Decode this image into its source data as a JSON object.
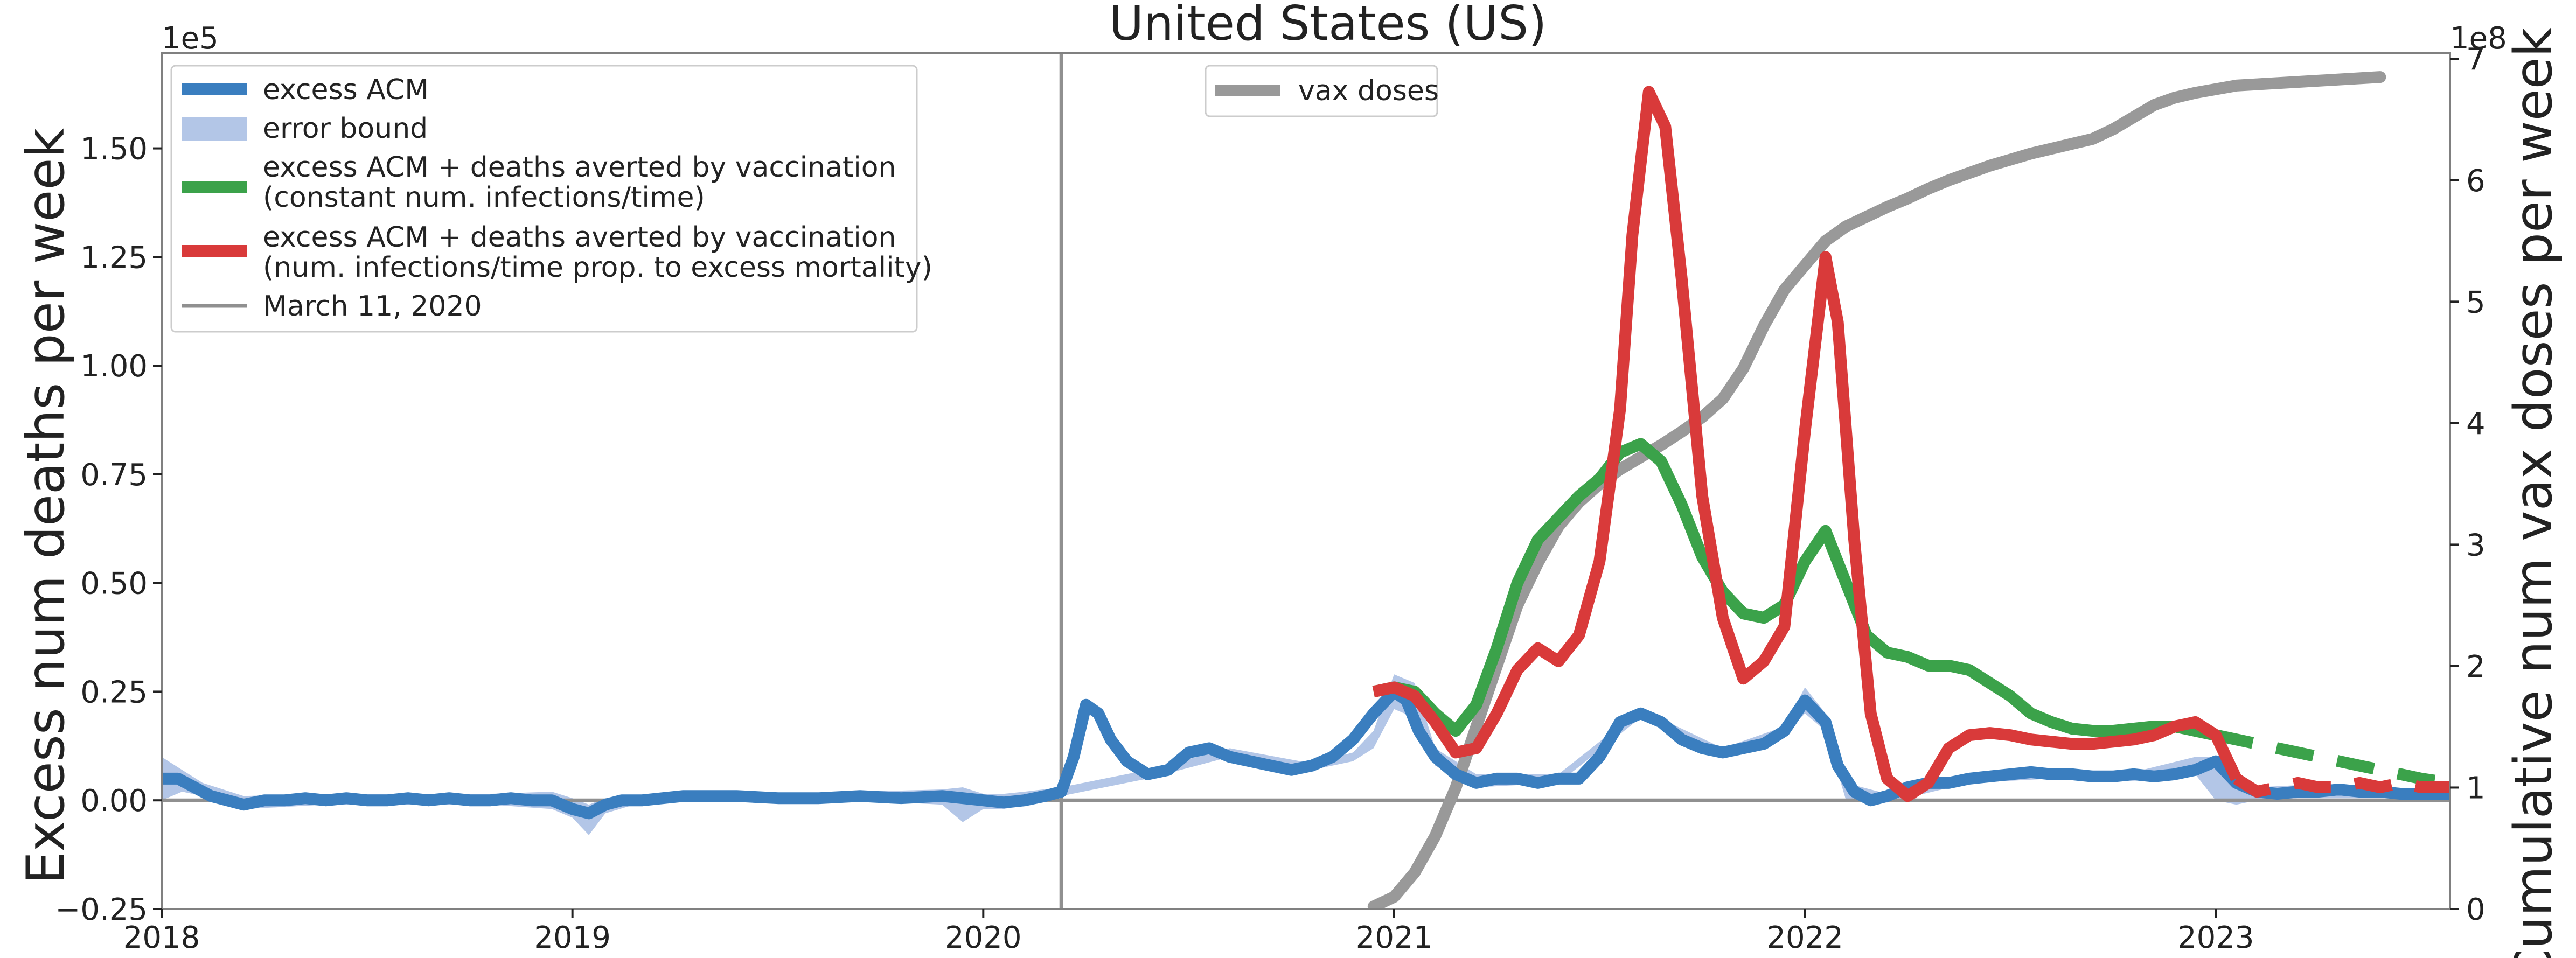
{
  "chart_data": {
    "type": "line",
    "title": "United States (US)",
    "ylabel_left": "Excess num deaths per week",
    "ylabel_right": "Cumulative num vax doses per week",
    "left_offset_label": "1e5",
    "right_offset_label": "1e8",
    "xlim": [
      2018.0,
      2023.57
    ],
    "ylim_left": [
      -0.25,
      1.72
    ],
    "ylim_right": [
      0,
      7.05
    ],
    "x_ticks": [
      2018,
      2019,
      2020,
      2021,
      2022,
      2023
    ],
    "x_tick_labels": [
      "2018",
      "2019",
      "2020",
      "2021",
      "2022",
      "2023"
    ],
    "y_left_ticks": [
      -0.25,
      0.0,
      0.25,
      0.5,
      0.75,
      1.0,
      1.25,
      1.5
    ],
    "y_left_tick_labels": [
      "−0.25",
      "0.00",
      "0.25",
      "0.50",
      "0.75",
      "1.00",
      "1.25",
      "1.50"
    ],
    "y_right_ticks": [
      0,
      1,
      2,
      3,
      4,
      5,
      6,
      7
    ],
    "y_right_tick_labels": [
      "0",
      "1",
      "2",
      "3",
      "4",
      "5",
      "6",
      "7"
    ],
    "vline": {
      "x": 2020.19,
      "label": "March 11, 2020"
    },
    "hline": {
      "y": 0
    },
    "legend_left": [
      {
        "label": "excess ACM",
        "color": "#3a7ebf",
        "kind": "line"
      },
      {
        "label": "error bound",
        "color": "#b3c6e7",
        "kind": "patch"
      },
      {
        "label": "excess ACM + deaths averted by vaccination",
        "label2": "(constant num. infections/time)",
        "color": "#3ba24a",
        "kind": "line"
      },
      {
        "label": "excess ACM + deaths averted by vaccination",
        "label2": "(num. infections/time prop. to excess mortality)",
        "color": "#d93a3a",
        "kind": "line"
      },
      {
        "label": "March 11, 2020",
        "color": "#909090",
        "kind": "thin"
      }
    ],
    "legend_right": [
      {
        "label": "vax doses",
        "color": "#999999",
        "kind": "line"
      }
    ],
    "series": [
      {
        "name": "excess ACM",
        "axis": "left",
        "color": "#3a7ebf",
        "x": [
          2018.0,
          2018.04,
          2018.08,
          2018.12,
          2018.16,
          2018.2,
          2018.25,
          2018.3,
          2018.35,
          2018.4,
          2018.45,
          2018.5,
          2018.55,
          2018.6,
          2018.65,
          2018.7,
          2018.75,
          2018.8,
          2018.85,
          2018.9,
          2018.95,
          2019.0,
          2019.04,
          2019.08,
          2019.12,
          2019.17,
          2019.22,
          2019.27,
          2019.32,
          2019.4,
          2019.5,
          2019.6,
          2019.7,
          2019.8,
          2019.9,
          2020.0,
          2020.05,
          2020.1,
          2020.15,
          2020.19,
          2020.22,
          2020.25,
          2020.28,
          2020.31,
          2020.35,
          2020.4,
          2020.45,
          2020.5,
          2020.55,
          2020.6,
          2020.65,
          2020.7,
          2020.75,
          2020.8,
          2020.85,
          2020.9,
          2020.95,
          2021.0,
          2021.03,
          2021.06,
          2021.1,
          2021.15,
          2021.2,
          2021.25,
          2021.3,
          2021.35,
          2021.4,
          2021.45,
          2021.5,
          2021.55,
          2021.6,
          2021.65,
          2021.7,
          2021.75,
          2021.8,
          2021.85,
          2021.9,
          2021.95,
          2022.0,
          2022.05,
          2022.08,
          2022.12,
          2022.16,
          2022.2,
          2022.25,
          2022.3,
          2022.35,
          2022.4,
          2022.45,
          2022.5,
          2022.55,
          2022.6,
          2022.65,
          2022.7,
          2022.75,
          2022.8,
          2022.85,
          2022.9,
          2022.95,
          2023.0,
          2023.05,
          2023.1,
          2023.15,
          2023.2,
          2023.25,
          2023.3,
          2023.35,
          2023.4,
          2023.45,
          2023.5,
          2023.57
        ],
        "y": [
          0.05,
          0.05,
          0.03,
          0.01,
          0.0,
          -0.01,
          0.0,
          0.0,
          0.005,
          0.0,
          0.005,
          0.0,
          0.0,
          0.005,
          0.0,
          0.005,
          0.0,
          0.0,
          0.005,
          0.0,
          0.0,
          -0.02,
          -0.03,
          -0.01,
          0.0,
          0.0,
          0.005,
          0.01,
          0.01,
          0.01,
          0.005,
          0.005,
          0.01,
          0.005,
          0.01,
          0.0,
          -0.005,
          0.0,
          0.01,
          0.02,
          0.1,
          0.22,
          0.2,
          0.14,
          0.09,
          0.06,
          0.07,
          0.11,
          0.12,
          0.1,
          0.09,
          0.08,
          0.07,
          0.08,
          0.1,
          0.14,
          0.2,
          0.25,
          0.23,
          0.16,
          0.1,
          0.06,
          0.04,
          0.05,
          0.05,
          0.04,
          0.05,
          0.05,
          0.1,
          0.18,
          0.2,
          0.18,
          0.14,
          0.12,
          0.11,
          0.12,
          0.13,
          0.16,
          0.23,
          0.18,
          0.08,
          0.02,
          0.0,
          0.01,
          0.03,
          0.04,
          0.04,
          0.05,
          0.055,
          0.06,
          0.065,
          0.06,
          0.06,
          0.055,
          0.055,
          0.06,
          0.055,
          0.06,
          0.07,
          0.09,
          0.04,
          0.02,
          0.015,
          0.02,
          0.02,
          0.025,
          0.02,
          0.02,
          0.015,
          0.015,
          0.015
        ]
      },
      {
        "name": "excess ACM + deaths averted by vaccination (constant num. infections/time)",
        "axis": "left",
        "color": "#3ba24a",
        "x": [
          2020.95,
          2021.0,
          2021.05,
          2021.1,
          2021.15,
          2021.2,
          2021.25,
          2021.3,
          2021.35,
          2021.4,
          2021.45,
          2021.5,
          2021.55,
          2021.6,
          2021.65,
          2021.7,
          2021.75,
          2021.8,
          2021.85,
          2021.9,
          2021.95,
          2022.0,
          2022.05,
          2022.1,
          2022.15,
          2022.2,
          2022.25,
          2022.3,
          2022.35,
          2022.4,
          2022.45,
          2022.5,
          2022.55,
          2022.6,
          2022.65,
          2022.7,
          2022.75,
          2022.8,
          2022.85,
          2022.9,
          2022.95,
          2023.0,
          2023.05,
          2023.1,
          2023.15,
          2023.2,
          2023.25,
          2023.3,
          2023.35,
          2023.4,
          2023.45,
          2023.5,
          2023.57
        ],
        "y": [
          0.25,
          0.26,
          0.25,
          0.2,
          0.16,
          0.22,
          0.35,
          0.5,
          0.6,
          0.65,
          0.7,
          0.74,
          0.8,
          0.82,
          0.78,
          0.68,
          0.56,
          0.48,
          0.43,
          0.42,
          0.45,
          0.55,
          0.62,
          0.5,
          0.38,
          0.34,
          0.33,
          0.31,
          0.31,
          0.3,
          0.27,
          0.24,
          0.2,
          0.18,
          0.165,
          0.16,
          0.16,
          0.165,
          0.17,
          0.17,
          0.16,
          0.15,
          0.14,
          0.13,
          0.12,
          0.11,
          0.1,
          0.09,
          0.08,
          0.07,
          0.06,
          0.05,
          0.04
        ],
        "dashed_from": 2023.0
      },
      {
        "name": "excess ACM + deaths averted by vaccination (num. infections/time prop. to excess mortality)",
        "axis": "left",
        "color": "#d93a3a",
        "x": [
          2020.95,
          2021.0,
          2021.05,
          2021.1,
          2021.15,
          2021.2,
          2021.25,
          2021.3,
          2021.35,
          2021.4,
          2021.45,
          2021.5,
          2021.55,
          2021.58,
          2021.62,
          2021.66,
          2021.7,
          2021.75,
          2021.8,
          2021.85,
          2021.9,
          2021.95,
          2022.0,
          2022.05,
          2022.08,
          2022.12,
          2022.16,
          2022.2,
          2022.25,
          2022.3,
          2022.35,
          2022.4,
          2022.45,
          2022.5,
          2022.55,
          2022.6,
          2022.65,
          2022.7,
          2022.75,
          2022.8,
          2022.85,
          2022.9,
          2022.95,
          2023.0,
          2023.05,
          2023.1,
          2023.15,
          2023.2,
          2023.25,
          2023.3,
          2023.35,
          2023.4,
          2023.45,
          2023.5,
          2023.57
        ],
        "y": [
          0.25,
          0.26,
          0.24,
          0.18,
          0.11,
          0.12,
          0.2,
          0.3,
          0.35,
          0.32,
          0.38,
          0.55,
          0.9,
          1.3,
          1.63,
          1.55,
          1.2,
          0.7,
          0.42,
          0.28,
          0.32,
          0.4,
          0.85,
          1.25,
          1.1,
          0.6,
          0.2,
          0.05,
          0.01,
          0.04,
          0.12,
          0.15,
          0.155,
          0.15,
          0.14,
          0.135,
          0.13,
          0.13,
          0.135,
          0.14,
          0.15,
          0.17,
          0.18,
          0.15,
          0.05,
          0.02,
          0.03,
          0.04,
          0.03,
          0.03,
          0.04,
          0.03,
          0.04,
          0.03,
          0.03
        ],
        "dashed_from": 2023.05
      },
      {
        "name": "vax doses",
        "axis": "right",
        "color": "#999999",
        "x": [
          2020.95,
          2021.0,
          2021.05,
          2021.1,
          2021.15,
          2021.2,
          2021.25,
          2021.3,
          2021.35,
          2021.4,
          2021.45,
          2021.5,
          2021.55,
          2021.6,
          2021.65,
          2021.7,
          2021.75,
          2021.8,
          2021.85,
          2021.9,
          2021.95,
          2022.0,
          2022.05,
          2022.1,
          2022.15,
          2022.2,
          2022.25,
          2022.3,
          2022.35,
          2022.4,
          2022.45,
          2022.5,
          2022.55,
          2022.6,
          2022.65,
          2022.7,
          2022.75,
          2022.8,
          2022.85,
          2022.9,
          2022.95,
          2023.0,
          2023.05,
          2023.1,
          2023.15,
          2023.2,
          2023.25,
          2023.3,
          2023.35,
          2023.4
        ],
        "y": [
          0.02,
          0.1,
          0.3,
          0.6,
          1.0,
          1.5,
          2.0,
          2.5,
          2.85,
          3.15,
          3.35,
          3.5,
          3.62,
          3.72,
          3.82,
          3.93,
          4.05,
          4.2,
          4.45,
          4.8,
          5.1,
          5.3,
          5.5,
          5.62,
          5.7,
          5.78,
          5.85,
          5.93,
          6.0,
          6.06,
          6.12,
          6.17,
          6.22,
          6.26,
          6.3,
          6.34,
          6.42,
          6.52,
          6.62,
          6.68,
          6.72,
          6.75,
          6.78,
          6.79,
          6.8,
          6.81,
          6.82,
          6.83,
          6.84,
          6.85
        ]
      }
    ],
    "error_band": {
      "name": "error bound",
      "color": "#b3c6e7",
      "x": [
        2018.0,
        2018.05,
        2018.1,
        2018.2,
        2018.4,
        2018.6,
        2018.8,
        2018.95,
        2019.0,
        2019.04,
        2019.08,
        2019.15,
        2019.3,
        2019.5,
        2019.7,
        2019.9,
        2019.95,
        2020.0,
        2020.05,
        2020.1,
        2020.19,
        2020.4,
        2020.6,
        2020.8,
        2020.9,
        2020.95,
        2021.0,
        2021.05,
        2021.1,
        2021.2,
        2021.4,
        2021.6,
        2021.8,
        2021.95,
        2022.0,
        2022.05,
        2022.1,
        2022.2,
        2022.4,
        2022.6,
        2022.8,
        2022.95,
        2023.0,
        2023.05,
        2023.1,
        2023.2,
        2023.4,
        2023.57
      ],
      "upper": [
        0.1,
        0.07,
        0.04,
        0.01,
        0.015,
        0.015,
        0.015,
        0.02,
        0.005,
        -0.01,
        0.005,
        0.01,
        0.02,
        0.015,
        0.02,
        0.025,
        0.03,
        0.015,
        0.015,
        0.02,
        0.03,
        0.07,
        0.12,
        0.085,
        0.11,
        0.16,
        0.29,
        0.27,
        0.12,
        0.06,
        0.06,
        0.21,
        0.12,
        0.17,
        0.26,
        0.2,
        0.04,
        0.015,
        0.06,
        0.07,
        0.065,
        0.1,
        0.1,
        0.05,
        0.03,
        0.035,
        0.03,
        0.025
      ],
      "lower": [
        0.0,
        0.02,
        0.01,
        -0.02,
        -0.01,
        -0.01,
        -0.01,
        -0.02,
        -0.04,
        -0.08,
        -0.03,
        -0.01,
        0.0,
        -0.005,
        0.0,
        -0.01,
        -0.05,
        -0.02,
        -0.02,
        -0.01,
        0.01,
        0.05,
        0.1,
        0.07,
        0.09,
        0.12,
        0.21,
        0.19,
        0.08,
        0.03,
        0.04,
        0.19,
        0.1,
        0.15,
        0.2,
        0.16,
        0.0,
        -0.005,
        0.04,
        0.05,
        0.045,
        0.06,
        0.0,
        -0.01,
        0.0,
        0.005,
        0.005,
        0.005
      ]
    }
  }
}
